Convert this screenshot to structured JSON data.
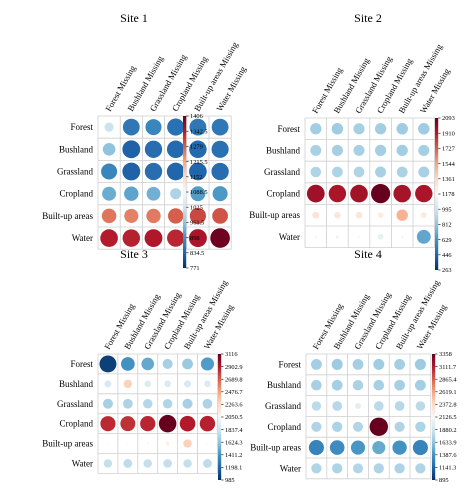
{
  "figure": {
    "columns": [
      "Forest Missing",
      "Bushland Missing",
      "Grassland Missing",
      "Cropland Missing",
      "Built-up areas Missing",
      "Water Missing"
    ],
    "colors": {
      "low": "#053061",
      "low_mid": "#2166ac",
      "blue": "#4393c3",
      "light_blue": "#92c5de",
      "pale_blue": "#d1e5f0",
      "white": "#f7f7f7",
      "pale_red": "#fddbc7",
      "light_red": "#f4a582",
      "red": "#d6604d",
      "dark_red": "#b2182b",
      "high": "#67001f",
      "grid": "#cfcfcf"
    }
  },
  "chart_data": [
    {
      "type": "heatmap",
      "title": "Site 1",
      "rows": [
        "Forest",
        "Bushland",
        "Grassland",
        "Cropland",
        "Built-up areas",
        "Water"
      ],
      "columns": [
        "Forest Missing",
        "Bushland Missing",
        "Grassland Missing",
        "Cropland Missing",
        "Built-up areas Missing",
        "Water Missing"
      ],
      "values": [
        [
          1020,
          860,
          880,
          850,
          860,
          860
        ],
        [
          960,
          830,
          845,
          840,
          840,
          850
        ],
        [
          880,
          830,
          845,
          835,
          835,
          845
        ],
        [
          930,
          920,
          935,
          990,
          910,
          905
        ],
        [
          1260,
          1250,
          1255,
          1280,
          1300,
          1290
        ],
        [
          1340,
          1335,
          1345,
          1330,
          1350,
          1400
        ]
      ],
      "colorbar_ticks": [
        "1406",
        "1342.5",
        "1279",
        "1215.5",
        "1152",
        "1088.5",
        "1025",
        "961.5",
        "898",
        "834.5",
        "771"
      ],
      "vmin": 771,
      "vmax": 1406
    },
    {
      "type": "heatmap",
      "title": "Site 2",
      "rows": [
        "Forest",
        "Bushland",
        "Grassland",
        "Cropland",
        "Built-up areas",
        "Water"
      ],
      "columns": [
        "Forest Missing",
        "Bushland Missing",
        "Grassland Missing",
        "Cropland Missing",
        "Built-up areas Missing",
        "Water Missing"
      ],
      "values": [
        [
          860,
          850,
          870,
          860,
          850,
          850
        ],
        [
          880,
          870,
          875,
          865,
          860,
          870
        ],
        [
          900,
          890,
          895,
          880,
          885,
          880
        ],
        [
          1960,
          1930,
          1950,
          2093,
          1940,
          1930
        ],
        [
          1300,
          1280,
          1290,
          1250,
          1500,
          1260
        ],
        [
          1160,
          1150,
          1170,
          1100,
          1160,
          700
        ]
      ],
      "colorbar_ticks": [
        "2093",
        "1910",
        "1727",
        "1544",
        "1361",
        "1178",
        "995",
        "812",
        "629",
        "446",
        "263"
      ],
      "vmin": 263,
      "vmax": 2093
    },
    {
      "type": "heatmap",
      "title": "Site 3",
      "rows": [
        "Forest",
        "Bushland",
        "Grassland",
        "Cropland",
        "Built-up areas",
        "Water"
      ],
      "columns": [
        "Forest Missing",
        "Bushland Missing",
        "Grassland Missing",
        "Cropland Missing",
        "Built-up areas Missing",
        "Water Missing"
      ],
      "values": [
        [
          1050,
          1400,
          1500,
          1700,
          1650,
          1450
        ],
        [
          1880,
          2300,
          1900,
          1900,
          1880,
          1900
        ],
        [
          1700,
          1720,
          1740,
          1730,
          1700,
          1720
        ],
        [
          2850,
          2830,
          2860,
          3116,
          2900,
          2880
        ],
        [
          2050,
          2060,
          2070,
          2100,
          2300,
          2050
        ],
        [
          1800,
          1780,
          1800,
          1790,
          1800,
          1780
        ]
      ],
      "colorbar_ticks": [
        "3116",
        "2902.9",
        "2689.8",
        "2476.7",
        "2263.6",
        "2050.5",
        "1837.4",
        "1624.3",
        "1411.2",
        "1198.1",
        "985"
      ],
      "vmin": 985,
      "vmax": 3116
    },
    {
      "type": "heatmap",
      "title": "Site 4",
      "rows": [
        "Forest",
        "Bushland",
        "Grassland",
        "Cropland",
        "Built-up areas",
        "Water"
      ],
      "columns": [
        "Forest Missing",
        "Bushland Missing",
        "Grassland Missing",
        "Cropland Missing",
        "Built-up areas Missing",
        "Water Missing"
      ],
      "values": [
        [
          1700,
          1680,
          1700,
          1690,
          1700,
          1680
        ],
        [
          1720,
          1710,
          1730,
          1720,
          1710,
          1700
        ],
        [
          1800,
          1780,
          2000,
          1790,
          1780,
          1790
        ],
        [
          1750,
          1740,
          1760,
          3358,
          1750,
          1740
        ],
        [
          1300,
          1350,
          1400,
          1500,
          1380,
          1300
        ],
        [
          1750,
          1740,
          1760,
          1750,
          1740,
          1750
        ]
      ],
      "colorbar_ticks": [
        "3358",
        "3111.7",
        "2865.4",
        "2619.1",
        "2372.8",
        "2126.5",
        "1880.2",
        "1633.9",
        "1387.6",
        "1141.3",
        "895"
      ],
      "vmin": 895,
      "vmax": 3358
    }
  ]
}
